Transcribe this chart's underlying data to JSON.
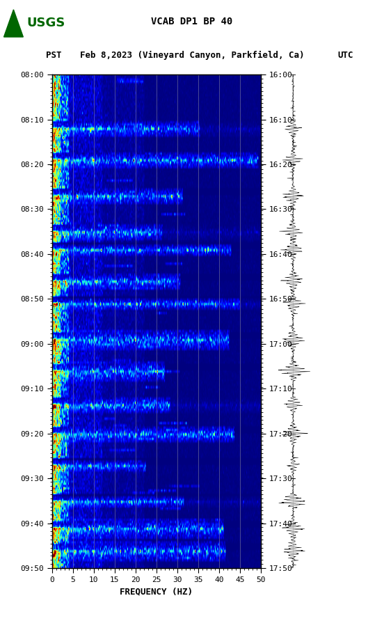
{
  "title_line1": "VCAB DP1 BP 40",
  "title_line2_pst": "PST",
  "title_line2_date": "Feb 8,2023 (Vineyard Canyon, Parkfield, Ca)",
  "title_line2_utc": "UTC",
  "xlabel": "FREQUENCY (HZ)",
  "freq_min": 0,
  "freq_max": 50,
  "pst_ticks": [
    "08:00",
    "08:10",
    "08:20",
    "08:30",
    "08:40",
    "08:50",
    "09:00",
    "09:10",
    "09:20",
    "09:30",
    "09:40",
    "09:50"
  ],
  "utc_ticks": [
    "16:00",
    "16:10",
    "16:20",
    "16:30",
    "16:40",
    "16:50",
    "17:00",
    "17:10",
    "17:20",
    "17:30",
    "17:40",
    "17:50"
  ],
  "freq_ticks": [
    0,
    5,
    10,
    15,
    20,
    25,
    30,
    35,
    40,
    45,
    50
  ],
  "bg_color": "#ffffff",
  "spectrogram_cmap": "jet",
  "vertical_lines_freq": [
    5,
    10,
    15,
    20,
    25,
    30,
    35,
    40,
    45
  ],
  "n_time_bins": 220,
  "n_freq_bins": 500,
  "random_seed": 12345,
  "dark_band_rows": [
    22,
    36,
    52,
    68,
    76,
    90,
    100,
    116,
    130,
    145,
    158,
    172,
    188,
    200,
    210
  ],
  "bright_band_rows": [
    24,
    38,
    54,
    70,
    78,
    92,
    102,
    118,
    132,
    147,
    160,
    174,
    190,
    202,
    212
  ],
  "waveform_seed": 999,
  "usgs_color": "#006600"
}
